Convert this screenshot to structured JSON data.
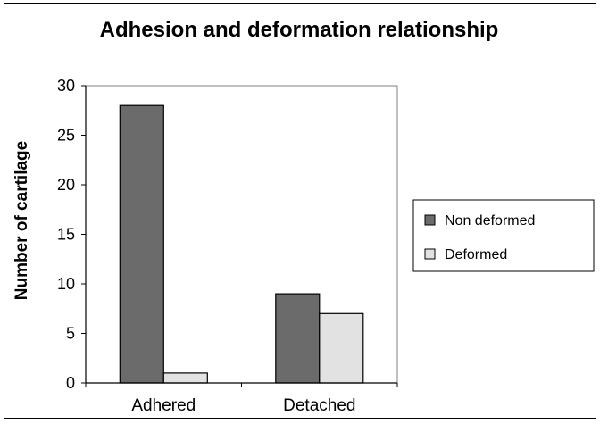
{
  "chart_data": {
    "type": "bar",
    "title": "Adhesion and deformation relationship",
    "xlabel": "",
    "ylabel": "Number of cartilage",
    "categories": [
      "Adhered",
      "Detached"
    ],
    "series": [
      {
        "name": "Non deformed",
        "values": [
          28,
          9
        ],
        "color": "#6b6b6b"
      },
      {
        "name": "Deformed",
        "values": [
          1,
          7
        ],
        "color": "#e2e2e2"
      }
    ],
    "ylim": [
      0,
      30
    ],
    "yticks": [
      0,
      5,
      10,
      15,
      20,
      25,
      30
    ],
    "grid": false,
    "legend": "right"
  }
}
